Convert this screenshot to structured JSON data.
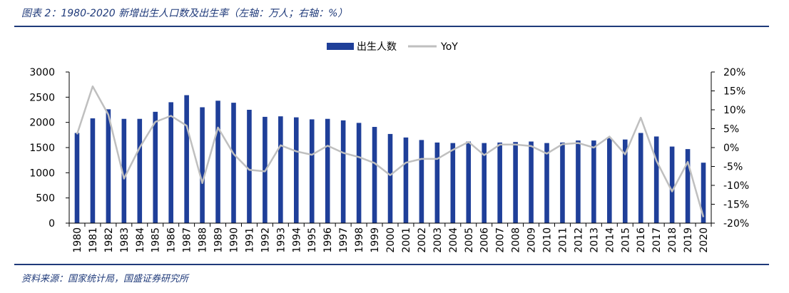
{
  "title": "图表 2：1980-2020 新增出生人口数及出生率（左轴：万人；右轴：%）",
  "source": "资料来源：国家统计局，国盛证券研究所",
  "colors": {
    "bar": "#1f3f99",
    "line": "#bfbfbf",
    "rule": "#1f3a7a"
  },
  "chart_data": {
    "type": "bar",
    "title": "图表 2：1980-2020 新增出生人口数及出生率（左轴：万人；右轴：%）",
    "legend_position": "top-center",
    "grid": false,
    "categories": [
      "1980",
      "1981",
      "1982",
      "1983",
      "1984",
      "1985",
      "1986",
      "1987",
      "1988",
      "1989",
      "1990",
      "1991",
      "1992",
      "1993",
      "1994",
      "1995",
      "1996",
      "1997",
      "1998",
      "1999",
      "2000",
      "2001",
      "2002",
      "2003",
      "2004",
      "2005",
      "2006",
      "2007",
      "2008",
      "2009",
      "2010",
      "2011",
      "2012",
      "2013",
      "2014",
      "2015",
      "2016",
      "2017",
      "2018",
      "2019",
      "2020"
    ],
    "y_left": {
      "min": 0,
      "max": 3000,
      "ticks": [
        "0",
        "500",
        "1000",
        "1500",
        "2000",
        "2500",
        "3000"
      ]
    },
    "y_right": {
      "min": -20,
      "max": 20,
      "ticks": [
        "-20%",
        "-15%",
        "-10%",
        "-5%",
        "0%",
        "5%",
        "10%",
        "15%",
        "20%"
      ]
    },
    "series": [
      {
        "name": "出生人数",
        "type": "bar",
        "axis": "left",
        "values": [
          1790,
          2080,
          2260,
          2070,
          2070,
          2210,
          2400,
          2540,
          2300,
          2430,
          2390,
          2250,
          2110,
          2120,
          2100,
          2060,
          2070,
          2040,
          1990,
          1910,
          1770,
          1700,
          1650,
          1600,
          1590,
          1620,
          1590,
          1600,
          1610,
          1620,
          1590,
          1600,
          1640,
          1640,
          1690,
          1660,
          1790,
          1720,
          1520,
          1470,
          1200
        ]
      },
      {
        "name": "YoY",
        "type": "line",
        "axis": "right",
        "values": [
          3.5,
          16.2,
          8.7,
          -8.2,
          0,
          6.8,
          8.4,
          5.8,
          -9.4,
          5.3,
          -1.7,
          -5.9,
          -6.3,
          0.6,
          -1.0,
          -1.9,
          0.5,
          -1.4,
          -2.5,
          -4.1,
          -7.3,
          -4.0,
          -3.0,
          -3.0,
          -0.6,
          1.5,
          -2.0,
          0.8,
          0.8,
          0.4,
          -1.6,
          0.9,
          1.2,
          0,
          2.9,
          -1.8,
          7.9,
          -3.5,
          -11.6,
          -3.8,
          -18.4
        ]
      }
    ]
  }
}
